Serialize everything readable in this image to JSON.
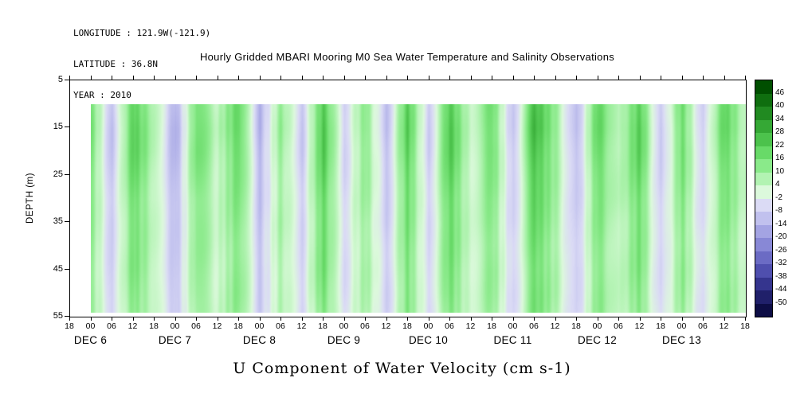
{
  "header": {
    "longitude": "LONGITUDE : 121.9W(-121.9)",
    "latitude": "LATITUDE : 36.8N",
    "year": "YEAR : 2010"
  },
  "title": "Hourly Gridded MBARI Mooring M0 Sea Water Temperature and Salinity Observations",
  "bottom_title": "U Component of Water Velocity (cm s-1)",
  "chart_data": {
    "type": "heatmap",
    "title": "Hourly Gridded MBARI Mooring M0 Sea Water Temperature and Salinity Observations",
    "variable_label": "U Component of Water Velocity (cm s-1)",
    "ylabel": "DEPTH (m)",
    "y_axis_ticks": [
      "5",
      "15",
      "25",
      "35",
      "45",
      "55"
    ],
    "y_range": [
      5,
      55
    ],
    "x_hour_ticks": [
      "18",
      "00",
      "06",
      "12",
      "18",
      "00",
      "06",
      "12",
      "18",
      "00",
      "06",
      "12",
      "18",
      "00",
      "06",
      "12",
      "18",
      "00",
      "06",
      "12",
      "18",
      "00",
      "06",
      "12",
      "18",
      "00",
      "06",
      "12",
      "18",
      "00",
      "06",
      "12",
      "18"
    ],
    "date_labels": [
      {
        "label": "DEC 6",
        "tick_index": 1
      },
      {
        "label": "DEC 7",
        "tick_index": 5
      },
      {
        "label": "DEC 8",
        "tick_index": 9
      },
      {
        "label": "DEC 9",
        "tick_index": 13
      },
      {
        "label": "DEC 10",
        "tick_index": 17
      },
      {
        "label": "DEC 11",
        "tick_index": 21
      },
      {
        "label": "DEC 12",
        "tick_index": 25
      },
      {
        "label": "DEC 13",
        "tick_index": 29
      }
    ],
    "colorbar": {
      "tick_labels": [
        "46",
        "40",
        "34",
        "28",
        "22",
        "16",
        "10",
        "4",
        "-2",
        "-8",
        "-14",
        "-20",
        "-26",
        "-32",
        "-38",
        "-44",
        "-50"
      ],
      "value_step": 6,
      "top_segment_midpoint_value": 49,
      "segment_colors_top_to_bottom": [
        "#004f00",
        "#0f6e0f",
        "#218a21",
        "#35a835",
        "#4cc24c",
        "#68da68",
        "#8aea8a",
        "#b2f3b2",
        "#dcf9dc",
        "#dbdbf5",
        "#c1c1ee",
        "#a4a4e3",
        "#8888d6",
        "#6b6bc4",
        "#4f4fae",
        "#35358e",
        "#20206a",
        "#0d0d45"
      ]
    },
    "grid": {
      "depths_m": [
        10,
        15,
        20,
        25,
        30,
        35,
        40,
        45,
        50,
        55
      ],
      "time_step_hours": 6,
      "time_start_tick_index": 1,
      "values_u_cm_s": [
        [
          15,
          -11,
          22,
          7,
          -15,
          18,
          4,
          20,
          -13,
          11,
          -9,
          24,
          -7,
          13,
          -11,
          22,
          -9,
          24,
          2,
          18,
          -11,
          26,
          11,
          -13,
          20,
          4,
          22,
          -11,
          18,
          -9,
          20,
          4
        ],
        [
          16,
          -12,
          23,
          7,
          -16,
          18,
          5,
          21,
          -14,
          12,
          -9,
          25,
          -7,
          14,
          -12,
          23,
          -9,
          25,
          2,
          18,
          -12,
          28,
          12,
          -14,
          21,
          5,
          23,
          -12,
          18,
          -9,
          21,
          5
        ],
        [
          15,
          -11,
          22,
          7,
          -15,
          18,
          4,
          20,
          -13,
          11,
          -9,
          24,
          -7,
          13,
          -11,
          22,
          -9,
          24,
          2,
          18,
          -11,
          26,
          11,
          -13,
          20,
          4,
          22,
          -11,
          18,
          -9,
          20,
          4
        ],
        [
          14,
          -10,
          20,
          6,
          -14,
          16,
          4,
          18,
          -12,
          10,
          -8,
          22,
          -6,
          12,
          -10,
          20,
          -8,
          22,
          2,
          16,
          -10,
          24,
          10,
          -12,
          18,
          4,
          20,
          -10,
          16,
          -8,
          18,
          4
        ],
        [
          13,
          -9,
          18,
          5,
          -13,
          14,
          4,
          16,
          -11,
          9,
          -7,
          20,
          -5,
          11,
          -9,
          18,
          -7,
          20,
          2,
          14,
          -9,
          22,
          9,
          -11,
          16,
          4,
          18,
          -9,
          14,
          -7,
          16,
          4
        ],
        [
          12,
          -9,
          17,
          5,
          -12,
          14,
          3,
          15,
          -10,
          9,
          -7,
          19,
          -5,
          10,
          -9,
          17,
          -7,
          19,
          2,
          14,
          -9,
          20,
          9,
          -10,
          15,
          3,
          17,
          -9,
          14,
          -7,
          15,
          3
        ],
        [
          11,
          -8,
          16,
          5,
          -11,
          13,
          3,
          14,
          -10,
          8,
          -6,
          18,
          -5,
          10,
          -8,
          16,
          -6,
          18,
          2,
          13,
          -8,
          19,
          8,
          -10,
          14,
          3,
          16,
          -8,
          13,
          -6,
          14,
          3
        ],
        [
          11,
          -8,
          16,
          5,
          -11,
          12,
          3,
          14,
          -10,
          8,
          -6,
          18,
          -5,
          10,
          -8,
          16,
          -6,
          17,
          2,
          13,
          -8,
          18,
          8,
          -10,
          14,
          3,
          16,
          -8,
          13,
          -6,
          14,
          3
        ],
        [
          11,
          -8,
          15,
          5,
          -11,
          12,
          3,
          14,
          -9,
          8,
          -6,
          17,
          -5,
          9,
          -8,
          15,
          -6,
          17,
          2,
          12,
          -8,
          18,
          8,
          -9,
          14,
          3,
          15,
          -8,
          12,
          -6,
          14,
          3
        ],
        [
          10,
          -7,
          14,
          4,
          -10,
          11,
          3,
          13,
          -8,
          7,
          -6,
          15,
          -4,
          8,
          -7,
          14,
          -6,
          15,
          1,
          11,
          -7,
          17,
          7,
          -8,
          13,
          3,
          14,
          -7,
          11,
          -6,
          13,
          3
        ]
      ]
    }
  }
}
